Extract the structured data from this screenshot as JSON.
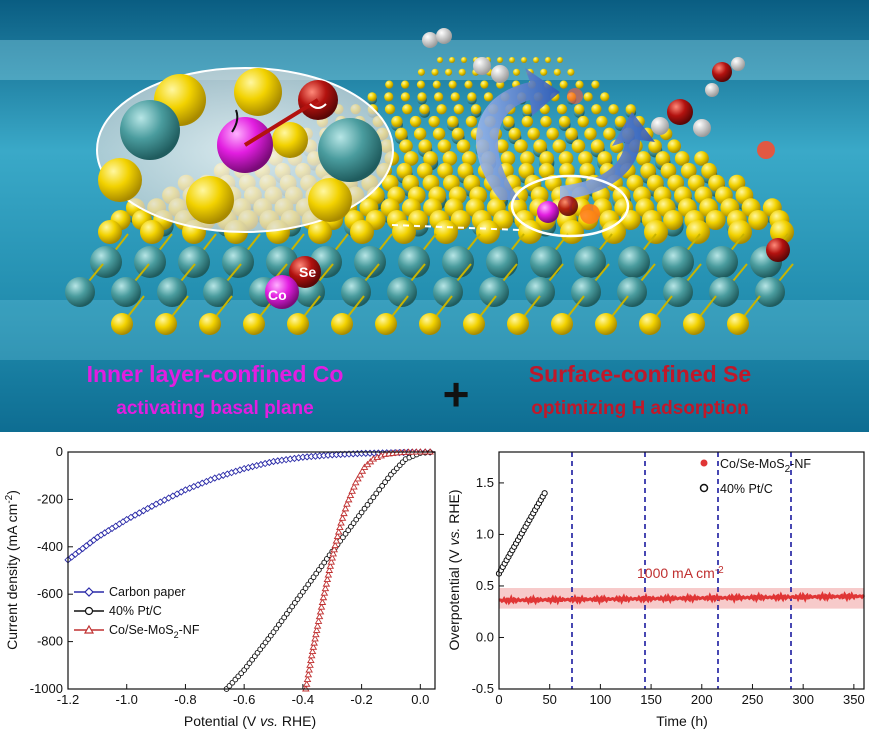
{
  "illustration": {
    "labels": {
      "co": "Co",
      "se": "Se"
    },
    "caption_left": {
      "line1": "Inner layer-confined Co",
      "line2": "activating basal plane"
    },
    "plus": "+",
    "caption_right": {
      "line1": "Surface-confined Se",
      "line2": "optimizing H adsorption"
    },
    "colors": {
      "water_deep": "#0b6a8f",
      "water_light": "#6fd0e6",
      "sulfur": "#f2d200",
      "molybdenum": "#4a9c9e",
      "cobalt": "#e21ee0",
      "selenium": "#b3120f",
      "caption_pink": "#e21ee0",
      "caption_red": "#c0182a"
    }
  },
  "chart_data": [
    {
      "type": "line",
      "xlabel_prefix": "Potential (V ",
      "xlabel_italic": "vs.",
      "xlabel_suffix": " RHE)",
      "ylabel": "Current density (mA cm",
      "ylabel_sup": "-2",
      "ylabel_end": ")",
      "xlim": [
        -1.2,
        0.05
      ],
      "ylim": [
        -1000,
        0
      ],
      "xticks": [
        "-1.2",
        "-1.0",
        "-0.8",
        "-0.6",
        "-0.4",
        "-0.2",
        "0.0"
      ],
      "yticks": [
        "0",
        "-200",
        "-400",
        "-600",
        "-800",
        "-1000"
      ],
      "legend_position": "bottom-left",
      "series": [
        {
          "name": "Carbon paper",
          "color": "#2a2aa8",
          "marker": "diamond",
          "x": [
            -1.2,
            -1.1,
            -1.0,
            -0.9,
            -0.8,
            -0.7,
            -0.6,
            -0.5,
            -0.4,
            -0.3,
            -0.2,
            -0.1,
            0.0,
            0.05
          ],
          "y": [
            -455,
            -360,
            -285,
            -220,
            -160,
            -110,
            -70,
            -40,
            -22,
            -12,
            -6,
            -3,
            -1,
            0
          ]
        },
        {
          "name": "40% Pt/C",
          "color": "#111111",
          "marker": "circle",
          "x": [
            -0.66,
            -0.6,
            -0.5,
            -0.4,
            -0.3,
            -0.2,
            -0.15,
            -0.1,
            -0.05,
            0.0,
            0.05
          ],
          "y": [
            -1000,
            -920,
            -760,
            -590,
            -420,
            -255,
            -175,
            -95,
            -30,
            -4,
            0
          ]
        },
        {
          "name": "Co/Se-MoS",
          "name_sub": "2",
          "name_suffix": "-NF",
          "color": "#c03030",
          "marker": "triangle",
          "x": [
            -0.39,
            -0.37,
            -0.35,
            -0.33,
            -0.31,
            -0.29,
            -0.27,
            -0.25,
            -0.22,
            -0.19,
            -0.16,
            -0.12,
            -0.08,
            -0.04,
            0.0,
            0.05
          ],
          "y": [
            -1000,
            -860,
            -735,
            -615,
            -500,
            -395,
            -300,
            -220,
            -130,
            -65,
            -30,
            -10,
            -4,
            -1,
            0,
            0
          ]
        }
      ]
    },
    {
      "type": "scatter",
      "xlabel": "Time (h)",
      "ylabel": "Overpotential (V ",
      "ylabel_italic": "vs.",
      "ylabel_suffix": " RHE)",
      "xlim": [
        0,
        360
      ],
      "ylim": [
        -0.5,
        1.8
      ],
      "xticks": [
        "0",
        "50",
        "100",
        "150",
        "200",
        "250",
        "300",
        "350"
      ],
      "yticks": [
        "-0.5",
        "0.0",
        "0.5",
        "1.0",
        "1.5"
      ],
      "vlines_x": [
        72,
        144,
        216,
        288
      ],
      "annotation": "1000 mA cm",
      "annotation_sup": "-2",
      "band": [
        0.28,
        0.48
      ],
      "legend_position": "top-right",
      "series": [
        {
          "name": "Co/Se-MoS",
          "name_sub": "2",
          "name_suffix": "-NF",
          "color": "#e03535",
          "x": [
            0,
            360
          ],
          "y_start": 0.36,
          "y_end": 0.4
        },
        {
          "name": "40% Pt/C",
          "color": "#111111",
          "x": [
            0,
            45
          ],
          "y_start": 0.62,
          "y_end": 1.4
        }
      ]
    }
  ]
}
